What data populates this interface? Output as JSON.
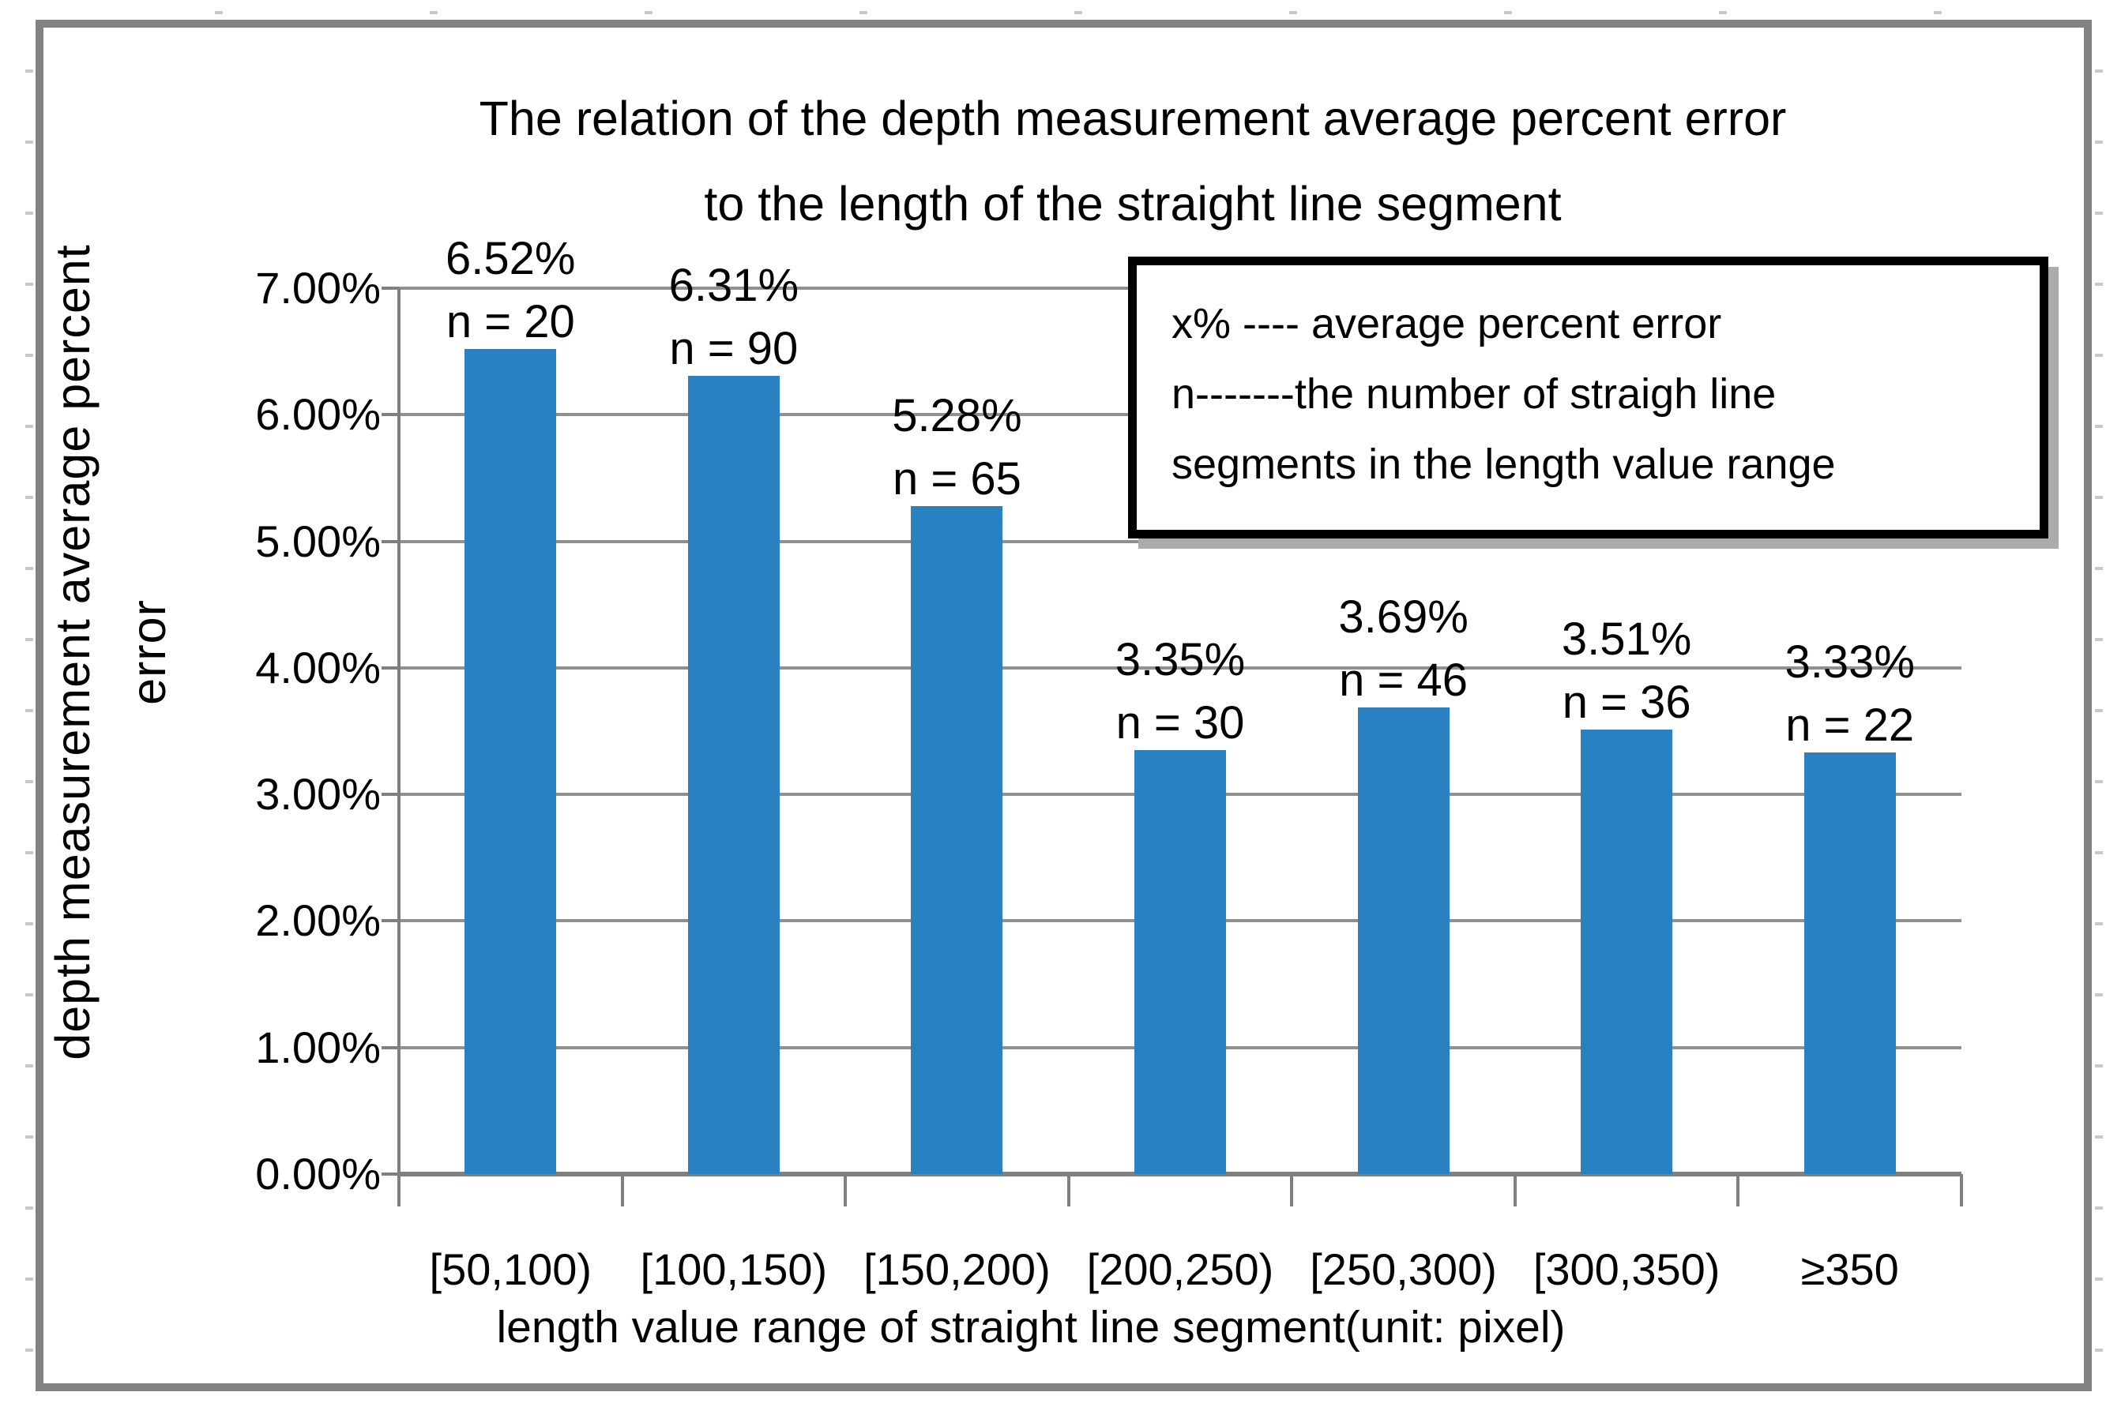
{
  "chart_data": {
    "type": "bar",
    "title_line1": "The relation of the depth measurement average percent error",
    "title_line2": "to the length of the straight line segment",
    "xlabel": "length value range of straight line segment(unit: pixel)",
    "ylabel_line1": "depth measurement average percent",
    "ylabel_line2": "error",
    "categories": [
      "[50,100)",
      "[100,150)",
      "[150,200)",
      "[200,250)",
      "[250,300)",
      "[300,350)",
      "≥350"
    ],
    "values": [
      6.52,
      6.31,
      5.28,
      3.35,
      3.69,
      3.51,
      3.33
    ],
    "counts": [
      20,
      90,
      65,
      30,
      46,
      36,
      22
    ],
    "percent_labels": [
      "6.52%",
      "6.31%",
      "5.28%",
      "3.35%",
      "3.69%",
      "3.51%",
      "3.33%"
    ],
    "count_labels": [
      "n = 20",
      "n = 90",
      "n = 65",
      "n = 30",
      "n = 46",
      "n = 36",
      "n = 22"
    ],
    "y_ticks": [
      "7.00%",
      "6.00%",
      "5.00%",
      "4.00%",
      "3.00%",
      "2.00%",
      "1.00%",
      "0.00%"
    ],
    "ylim": [
      0,
      7
    ],
    "grid": true,
    "legend_position": "upper right",
    "colors": {
      "bar": "#2981C1",
      "gridline": "#909090",
      "axis": "#7f7f7f",
      "chart_border": "#828282",
      "legend_border": "#000000",
      "legend_shadow": "#ababab",
      "text": "#000000"
    }
  },
  "legend": {
    "line1": "x% ---- average percent error",
    "line2": "n-------the number of straigh line",
    "line3": "segments in the length value range"
  }
}
